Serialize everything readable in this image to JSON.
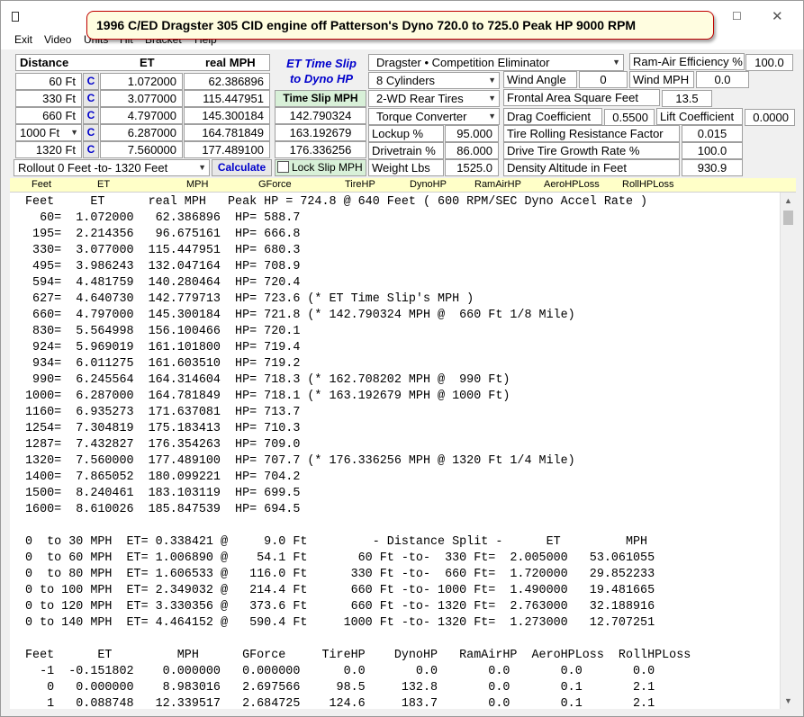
{
  "window": {
    "title": "1996 C/ED Dragster 305 CID engine off Patterson's Dyno 720.0 to 725.0 Peak HP 9000 RPM",
    "minimize": "–",
    "maximize": "☐",
    "close": "✕"
  },
  "menu": [
    "Exit",
    "Video",
    "Units",
    "Hit",
    "Bracket",
    "Help"
  ],
  "inputs": {
    "col_distance": "Distance",
    "col_et": "ET",
    "col_mph": "real MPH",
    "c_label": "C",
    "rows": [
      {
        "dist": "60 Ft",
        "et": "1.072000",
        "mph": "62.386896",
        "slip": ""
      },
      {
        "dist": "330 Ft",
        "et": "3.077000",
        "mph": "115.447951",
        "slip": "142.790324"
      },
      {
        "dist": "660 Ft",
        "et": "4.797000",
        "mph": "145.300184",
        "slip": "163.192679"
      },
      {
        "dist": "1000 Ft",
        "et": "6.287000",
        "mph": "164.781849",
        "slip": "176.336256"
      },
      {
        "dist": "1320 Ft",
        "et": "7.560000",
        "mph": "177.489100",
        "slip": ""
      }
    ],
    "rollout": "Rollout 0 Feet -to- 1320 Feet",
    "calculate": "Calculate",
    "et_slip_line1": "ET Time Slip",
    "et_slip_line2": "to Dyno HP",
    "time_slip_mph": "Time Slip MPH",
    "lock_slip": "Lock Slip MPH"
  },
  "vehicle": {
    "class": "Dragster • Competition Eliminator",
    "cylinders": "8  Cylinders",
    "tires": "2-WD Rear Tires",
    "converter": "Torque Converter",
    "lockup_label": "Lockup %",
    "lockup": "95.000",
    "drivetrain_label": "Drivetrain %",
    "drivetrain": "86.000",
    "weight_label": "Weight Lbs",
    "weight": "1525.0"
  },
  "aero": {
    "wind_angle_label": "Wind Angle",
    "wind_angle": "0",
    "wind_mph_label": "Wind MPH",
    "wind_mph": "0.0",
    "ram_label": "Ram-Air Efficiency %",
    "ram": "100.0",
    "frontal_label": "Frontal Area Square Feet",
    "frontal": "13.5",
    "drag_label": "Drag Coefficient",
    "drag": "0.5500",
    "lift_label": "Lift Coefficient",
    "lift": "0.0000",
    "rolling_label": "Tire Rolling Resistance Factor",
    "rolling": "0.015",
    "growth_label": "Drive Tire Growth Rate %",
    "growth": "100.0",
    "density_label": "Density Altitude in Feet",
    "density": "930.9"
  },
  "header_tabs": [
    "Feet",
    "ET",
    "MPH",
    "GForce",
    "TireHP",
    "DynoHP",
    "RamAirHP",
    "AeroHPLoss",
    "RollHPLoss"
  ],
  "output_lines": [
    "Feet     ET      real MPH   Peak HP = 724.8 @ 640 Feet ( 600 RPM/SEC Dyno Accel Rate )",
    "  60=  1.072000   62.386896  HP= 588.7",
    " 195=  2.214356   96.675161  HP= 666.8",
    " 330=  3.077000  115.447951  HP= 680.3",
    " 495=  3.986243  132.047164  HP= 708.9",
    " 594=  4.481759  140.280464  HP= 720.4",
    " 627=  4.640730  142.779713  HP= 723.6 (* ET Time Slip's MPH )",
    " 660=  4.797000  145.300184  HP= 721.8 (* 142.790324 MPH @  660 Ft 1/8 Mile)",
    " 830=  5.564998  156.100466  HP= 720.1",
    " 924=  5.969019  161.101800  HP= 719.4",
    " 934=  6.011275  161.603510  HP= 719.2",
    " 990=  6.245564  164.314604  HP= 718.3 (* 162.708202 MPH @  990 Ft)",
    "1000=  6.287000  164.781849  HP= 718.1 (* 163.192679 MPH @ 1000 Ft)",
    "1160=  6.935273  171.637081  HP= 713.7",
    "1254=  7.304819  175.183413  HP= 710.3",
    "1287=  7.432827  176.354263  HP= 709.0",
    "1320=  7.560000  177.489100  HP= 707.7 (* 176.336256 MPH @ 1320 Ft 1/4 Mile)",
    "1400=  7.865052  180.099221  HP= 704.2",
    "1500=  8.240461  183.103119  HP= 699.5",
    "1600=  8.610026  185.847539  HP= 694.5",
    "",
    "0  to 30 MPH  ET= 0.338421 @     9.0 Ft         - Distance Split -      ET         MPH",
    "0  to 60 MPH  ET= 1.006890 @    54.1 Ft       60 Ft -to-  330 Ft=  2.005000   53.061055",
    "0  to 80 MPH  ET= 1.606533 @   116.0 Ft      330 Ft -to-  660 Ft=  1.720000   29.852233",
    "0 to 100 MPH  ET= 2.349032 @   214.4 Ft      660 Ft -to- 1000 Ft=  1.490000   19.481665",
    "0 to 120 MPH  ET= 3.330356 @   373.6 Ft      660 Ft -to- 1320 Ft=  2.763000   32.188916",
    "0 to 140 MPH  ET= 4.464152 @   590.4 Ft     1000 Ft -to- 1320 Ft=  1.273000   12.707251",
    "",
    "Feet      ET         MPH      GForce     TireHP    DynoHP   RamAirHP  AeroHPLoss  RollHPLoss",
    "  -1  -0.151802    0.000000   0.000000      0.0       0.0       0.0       0.0       0.0",
    "   0   0.000000    8.983016   2.697566     98.5     132.8       0.0       0.1       2.1",
    "   1   0.088748   12.339517   2.684725    124.6     183.7       0.0       0.1       2.1"
  ]
}
